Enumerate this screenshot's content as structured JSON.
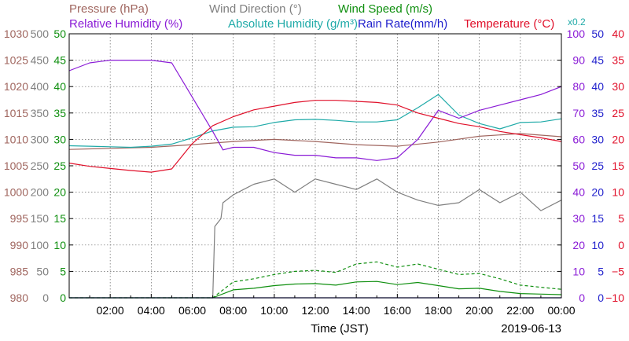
{
  "chart_data": {
    "type": "line",
    "xlabel": "Time (JST)",
    "date": "2019-06-13",
    "x_ticks": [
      "02:00",
      "04:00",
      "06:00",
      "08:00",
      "10:00",
      "12:00",
      "14:00",
      "16:00",
      "18:00",
      "20:00",
      "22:00",
      "00:00"
    ],
    "grid": true,
    "header": [
      {
        "label": "Pressure (hPa)",
        "color": "#a0665f"
      },
      {
        "label": "Wind Direction (°)",
        "color": "#7f7f7f"
      },
      {
        "label": "Wind Speed (m/s)",
        "color": "#0f8f0f"
      },
      {
        "label": "Relative Humidity (%)",
        "color": "#8a1bd6"
      },
      {
        "label": "Absolute Humidity (g/m³)",
        "color": "#1faaa8"
      },
      {
        "label": "Rain Rate(mm/h)",
        "color": "#1f1fcc"
      },
      {
        "label": "Temperature (°C)",
        "color": "#e0102a"
      },
      {
        "label": "x0.2",
        "color": "#1faaa8"
      }
    ],
    "axes": {
      "pressure": {
        "ticks": [
          "1030",
          "1025",
          "1020",
          "1015",
          "1010",
          "1005",
          "1000",
          "995",
          "990",
          "985",
          "980"
        ],
        "range": [
          980,
          1030
        ],
        "color": "#a0665f"
      },
      "wind_direction": {
        "ticks": [
          "500",
          "450",
          "400",
          "350",
          "300",
          "250",
          "200",
          "150",
          "100",
          "50",
          "0"
        ],
        "range": [
          0,
          500
        ],
        "color": "#7f7f7f"
      },
      "wind_speed": {
        "ticks": [
          "50",
          "45",
          "40",
          "35",
          "30",
          "25",
          "20",
          "15",
          "10",
          "5",
          "0"
        ],
        "range": [
          0,
          50
        ],
        "color": "#0f8f0f"
      },
      "humidity": {
        "ticks": [
          "100",
          "90",
          "80",
          "70",
          "60",
          "50",
          "40",
          "30",
          "20",
          "10",
          "0"
        ],
        "range": [
          0,
          100
        ],
        "color": "#8a1bd6"
      },
      "rain_rate": {
        "ticks": [
          "50",
          "45",
          "40",
          "35",
          "30",
          "25",
          "20",
          "15",
          "10",
          "5",
          "0"
        ],
        "range": [
          0,
          50
        ],
        "color": "#1f1fcc"
      },
      "temperature": {
        "ticks": [
          "40",
          "35",
          "30",
          "25",
          "20",
          "15",
          "10",
          "5",
          "0",
          "−5",
          "−10"
        ],
        "range": [
          -10,
          40
        ],
        "color": "#e0102a"
      }
    },
    "series": [
      {
        "name": "Temperature (°C)",
        "color": "#e0102a",
        "hours": [
          0,
          1,
          2,
          3,
          4,
          5,
          6,
          7,
          8,
          9,
          10,
          11,
          12,
          13,
          14,
          15,
          16,
          17,
          18,
          19,
          20,
          21,
          22,
          23,
          24
        ],
        "values": [
          15.5,
          14.9,
          14.5,
          14.1,
          13.8,
          14.4,
          19.2,
          22.6,
          24.3,
          25.6,
          26.3,
          27.0,
          27.4,
          27.4,
          27.2,
          27.0,
          26.5,
          25.0,
          24.0,
          23.0,
          22.4,
          21.5,
          20.9,
          20.3,
          19.6
        ]
      },
      {
        "name": "Relative Humidity (%)",
        "color": "#8a1bd6",
        "hours": [
          0,
          1,
          2,
          3,
          4,
          5,
          6,
          7,
          7.5,
          8,
          9,
          10,
          11,
          12,
          13,
          14,
          15,
          16,
          17,
          18,
          19,
          20,
          21,
          22,
          23,
          24
        ],
        "values": [
          86,
          89,
          90,
          90,
          90,
          89,
          76,
          63,
          56,
          57,
          57,
          55,
          54,
          54,
          53,
          53,
          52,
          53,
          60,
          71,
          68,
          71,
          73,
          75,
          77,
          80
        ]
      },
      {
        "name": "Absolute Humidity (g/m³) x0.2",
        "color": "#1faaa8",
        "hours": [
          0,
          1,
          2,
          3,
          4,
          5,
          6,
          7,
          8,
          9,
          10,
          11,
          12,
          13,
          14,
          15,
          16,
          17,
          18,
          19,
          20,
          21,
          22,
          23,
          24
        ],
        "values": [
          57.6,
          57.4,
          57.2,
          57.0,
          57.4,
          58.2,
          60.6,
          63.2,
          64.6,
          64.8,
          66.4,
          67.4,
          67.6,
          67.2,
          66.6,
          66.6,
          67.4,
          72.0,
          77.0,
          69.2,
          66.0,
          64.0,
          66.4,
          66.6,
          67.8
        ]
      },
      {
        "name": "Pressure (hPa)",
        "color": "#a0665f",
        "hours": [
          0,
          2,
          4,
          6,
          8,
          10,
          12,
          14,
          16,
          18,
          20,
          22,
          24
        ],
        "values": [
          1008.1,
          1008.3,
          1008.5,
          1009.0,
          1009.6,
          1010.0,
          1009.6,
          1009.0,
          1008.7,
          1009.5,
          1010.6,
          1011.1,
          1010.5
        ]
      },
      {
        "name": "Wind Direction (°)",
        "color": "#7f7f7f",
        "hours": [
          7.0,
          7.1,
          7.4,
          7.5,
          8.0,
          8.5,
          9.0,
          10,
          11,
          12,
          13,
          14,
          15,
          16,
          17,
          18,
          19,
          20,
          21,
          22,
          23,
          24
        ],
        "values": [
          0,
          135,
          150,
          180,
          195,
          205,
          215,
          225,
          200,
          225,
          215,
          205,
          225,
          200,
          185,
          175,
          180,
          205,
          180,
          200,
          165,
          185
        ]
      },
      {
        "name": "Wind Speed (m/s)",
        "color": "#0f8f0f",
        "hours": [
          0,
          7.0,
          8,
          9,
          10,
          11,
          12,
          13,
          14,
          15,
          16,
          17,
          18,
          19,
          20,
          21,
          22,
          23,
          24
        ],
        "values": [
          0,
          0,
          1.5,
          1.8,
          2.3,
          2.6,
          2.7,
          2.4,
          3.0,
          3.1,
          2.5,
          2.9,
          2.3,
          1.7,
          1.8,
          1.2,
          0.8,
          0.7,
          0.6
        ]
      },
      {
        "name": "Wind Speed gust (m/s)",
        "color": "#0f8f0f",
        "dashed": true,
        "hours": [
          0,
          7.0,
          8,
          9,
          10,
          11,
          12,
          13,
          14,
          15,
          16,
          17,
          18,
          19,
          20,
          21,
          22,
          23,
          24
        ],
        "values": [
          0,
          0,
          3.0,
          3.6,
          4.4,
          5.0,
          5.2,
          4.8,
          6.4,
          6.8,
          5.8,
          6.4,
          5.4,
          4.4,
          4.6,
          3.6,
          2.4,
          2.0,
          1.6
        ]
      },
      {
        "name": "Rain Rate(mm/h)",
        "color": "#1f1fcc",
        "hours": [
          0,
          24
        ],
        "values": [
          0,
          0
        ]
      }
    ]
  }
}
